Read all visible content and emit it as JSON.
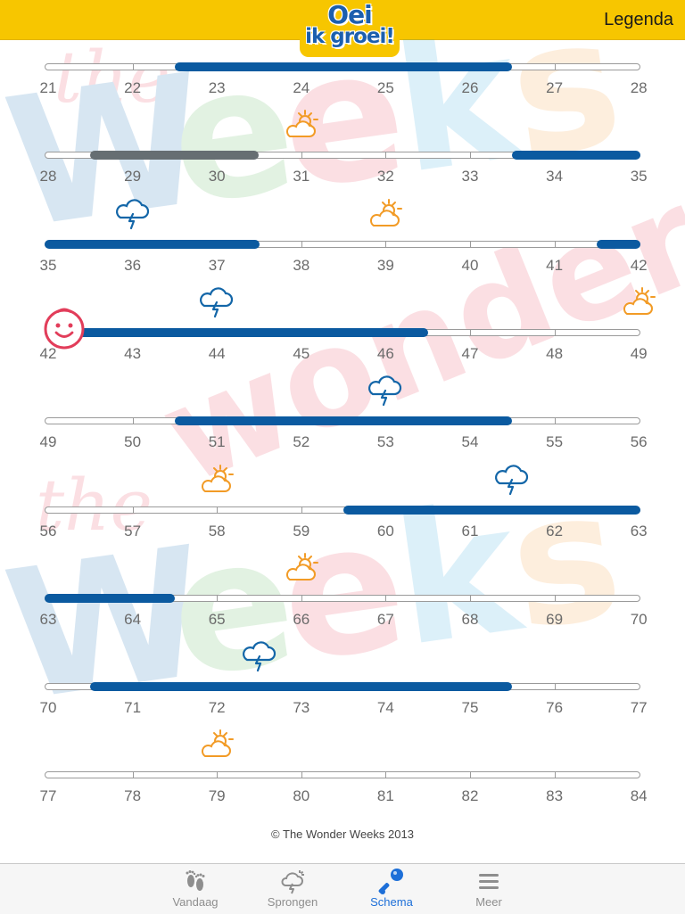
{
  "header": {
    "logo_line1": "Oei",
    "logo_line2": "ik groei!",
    "legend_label": "Legenda"
  },
  "watermark": {
    "line1": "the",
    "line2": "Weeks",
    "line3": "wonder",
    "colors": [
      "#1b6fb8",
      "#5bb65b",
      "#e8485f",
      "#38a9e0",
      "#f4a13a"
    ]
  },
  "colors": {
    "header_bg": "#f7c600",
    "bar_blue": "#0b5aa0",
    "bar_gray": "#666e72",
    "sun_icon": "#f29b26",
    "storm_icon": "#1366a8",
    "baby_icon": "#e23d5a",
    "tab_active": "#1d6fd8"
  },
  "rows": [
    {
      "weeks": [
        "21",
        "22",
        "23",
        "24",
        "25",
        "26",
        "27",
        "28"
      ],
      "bars": [
        {
          "from": 1.5,
          "to": 5.5,
          "color": "blue"
        }
      ],
      "icons": []
    },
    {
      "weeks": [
        "28",
        "29",
        "30",
        "31",
        "32",
        "33",
        "34",
        "35"
      ],
      "bars": [
        {
          "from": 0.5,
          "to": 2.5,
          "color": "gray"
        },
        {
          "from": 5.5,
          "to": 7,
          "color": "blue"
        }
      ],
      "icons": [
        {
          "type": "sun-cloud-icon",
          "at": 3
        }
      ]
    },
    {
      "weeks": [
        "35",
        "36",
        "37",
        "38",
        "39",
        "40",
        "41",
        "42"
      ],
      "bars": [
        {
          "from": 0,
          "to": 2.5,
          "color": "blue"
        },
        {
          "from": 6.5,
          "to": 7,
          "color": "blue"
        }
      ],
      "icons": [
        {
          "type": "storm-cloud-icon",
          "at": 1
        },
        {
          "type": "sun-cloud-icon",
          "at": 4
        }
      ]
    },
    {
      "weeks": [
        "42",
        "43",
        "44",
        "45",
        "46",
        "47",
        "48",
        "49"
      ],
      "bars": [
        {
          "from": 0,
          "to": 4.5,
          "color": "blue"
        }
      ],
      "icons": [
        {
          "type": "baby-face-icon",
          "at": 0
        },
        {
          "type": "storm-cloud-icon",
          "at": 2
        },
        {
          "type": "sun-cloud-icon",
          "at": 7
        }
      ]
    },
    {
      "weeks": [
        "49",
        "50",
        "51",
        "52",
        "53",
        "54",
        "55",
        "56"
      ],
      "bars": [
        {
          "from": 1.5,
          "to": 5.5,
          "color": "blue"
        }
      ],
      "icons": [
        {
          "type": "storm-cloud-icon",
          "at": 4
        }
      ]
    },
    {
      "weeks": [
        "56",
        "57",
        "58",
        "59",
        "60",
        "61",
        "62",
        "63"
      ],
      "bars": [
        {
          "from": 3.5,
          "to": 7,
          "color": "blue"
        }
      ],
      "icons": [
        {
          "type": "sun-cloud-icon",
          "at": 2
        },
        {
          "type": "storm-cloud-icon",
          "at": 5.5
        }
      ]
    },
    {
      "weeks": [
        "63",
        "64",
        "65",
        "66",
        "67",
        "68",
        "69",
        "70"
      ],
      "bars": [
        {
          "from": 0,
          "to": 1.5,
          "color": "blue"
        }
      ],
      "icons": [
        {
          "type": "sun-cloud-icon",
          "at": 3
        }
      ]
    },
    {
      "weeks": [
        "70",
        "71",
        "72",
        "73",
        "74",
        "75",
        "76",
        "77"
      ],
      "bars": [
        {
          "from": 0.5,
          "to": 5.5,
          "color": "blue"
        }
      ],
      "icons": [
        {
          "type": "storm-cloud-icon",
          "at": 2.5
        }
      ]
    },
    {
      "weeks": [
        "77",
        "78",
        "79",
        "80",
        "81",
        "82",
        "83",
        "84"
      ],
      "bars": [],
      "icons": [
        {
          "type": "sun-cloud-icon",
          "at": 2
        }
      ]
    }
  ],
  "copyright": "© The Wonder Weeks 2013",
  "tabs": [
    {
      "label": "Vandaag",
      "icon": "footprints-icon",
      "active": false
    },
    {
      "label": "Sprongen",
      "icon": "leap-cloud-icon",
      "active": false
    },
    {
      "label": "Schema",
      "icon": "rattle-icon",
      "active": true
    },
    {
      "label": "Meer",
      "icon": "menu-icon",
      "active": false
    }
  ]
}
